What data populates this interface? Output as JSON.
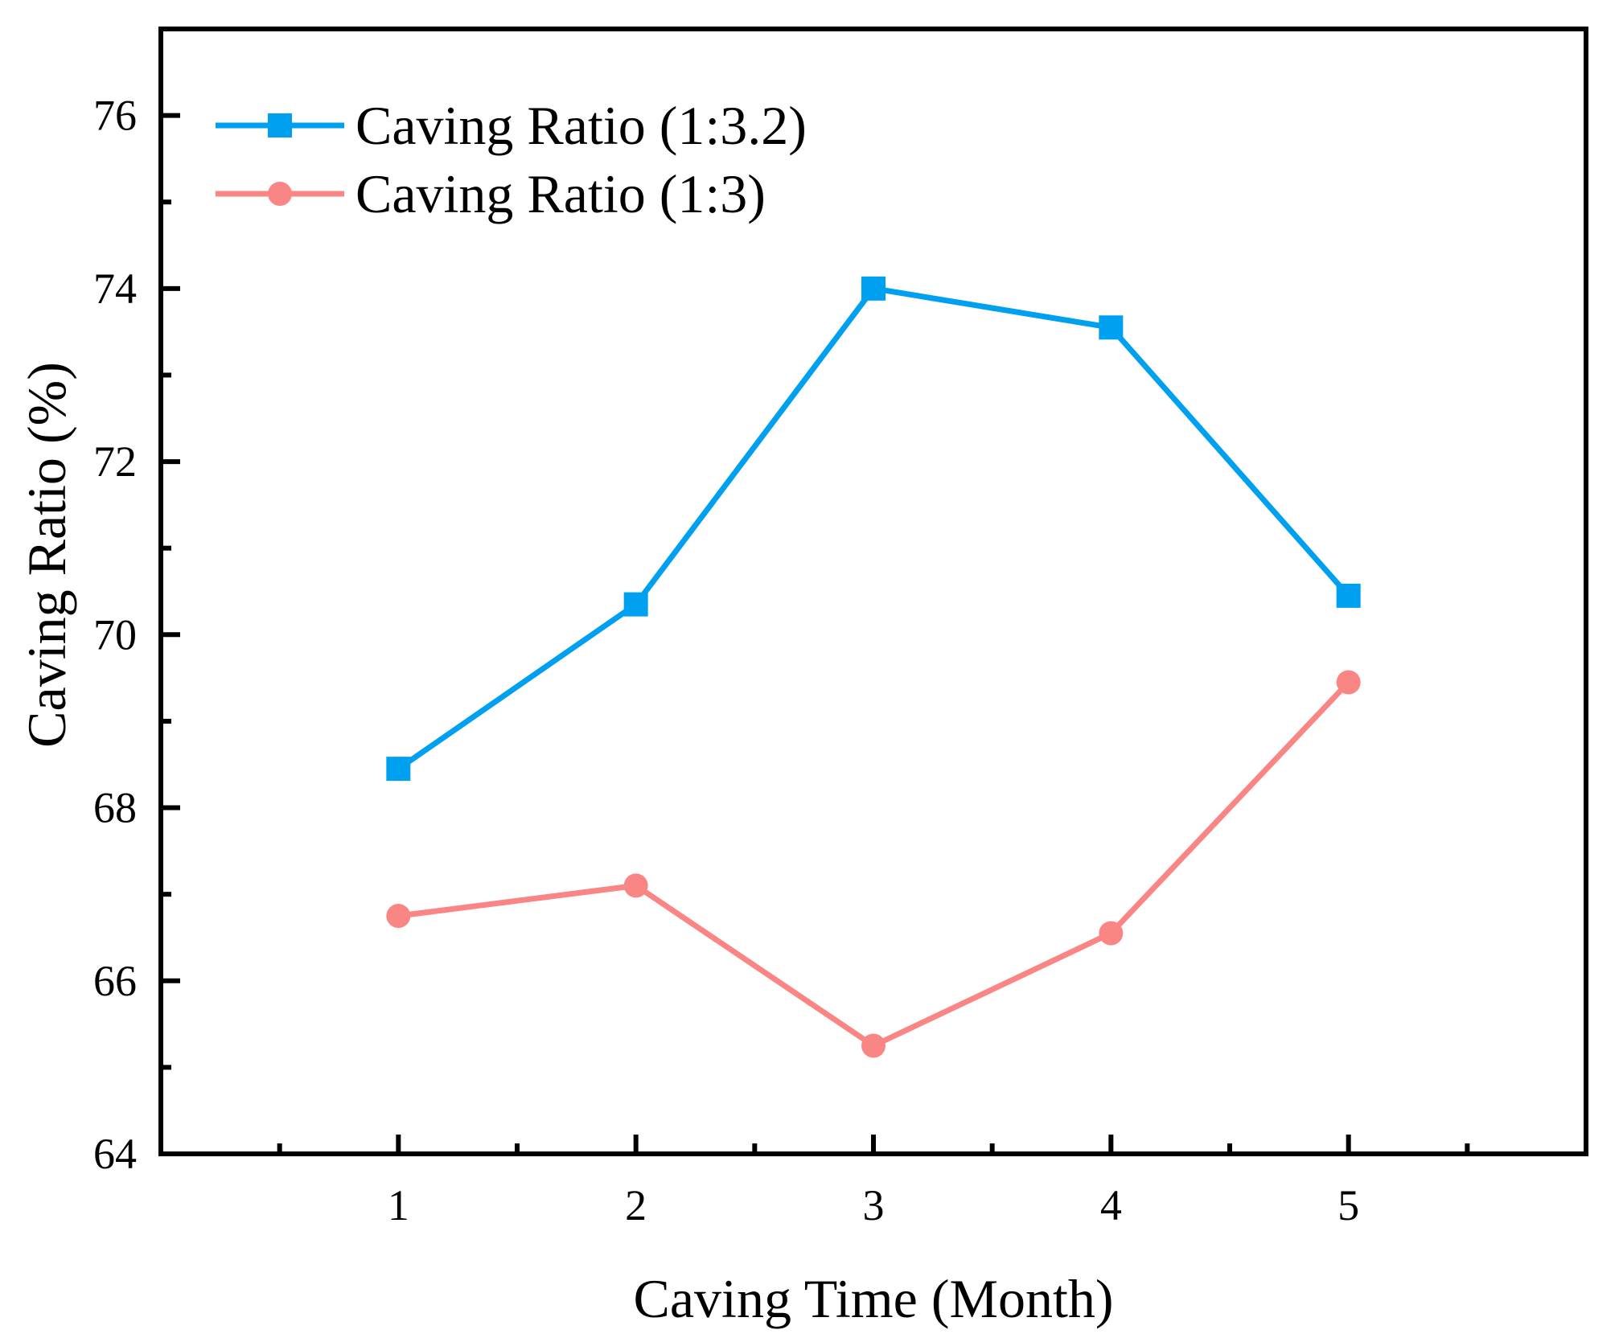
{
  "chart_data": {
    "type": "line",
    "title": "",
    "xlabel": "Caving Time (Month)",
    "ylabel": "Caving Ratio (%)",
    "x": [
      1,
      2,
      3,
      4,
      5
    ],
    "series": [
      {
        "name": "Caving Ratio (1:3.2)",
        "color": "#00A0F0",
        "marker": "square",
        "values": [
          68.45,
          70.35,
          74.0,
          73.55,
          70.45
        ]
      },
      {
        "name": "Caving Ratio (1:3)",
        "color": "#FA8585",
        "marker": "circle",
        "values": [
          66.75,
          67.1,
          65.25,
          66.55,
          69.45
        ]
      }
    ],
    "xlim": [
      0,
      6
    ],
    "ylim": [
      64,
      77
    ],
    "x_major_ticks": [
      1,
      2,
      3,
      4,
      5
    ],
    "x_minor_ticks": [
      0.5,
      1.5,
      2.5,
      3.5,
      4.5,
      5.5
    ],
    "y_major_ticks": [
      64,
      66,
      68,
      70,
      72,
      74,
      76
    ],
    "y_minor_ticks": [
      65,
      67,
      69,
      71,
      73,
      75
    ],
    "x_tick_labels": [
      "1",
      "2",
      "3",
      "4",
      "5"
    ],
    "y_tick_labels": [
      "64",
      "66",
      "68",
      "70",
      "72",
      "74",
      "76"
    ],
    "grid": false,
    "legend_position": "top-left",
    "axis_color": "#000000",
    "background_color": "#FFFFFF"
  }
}
